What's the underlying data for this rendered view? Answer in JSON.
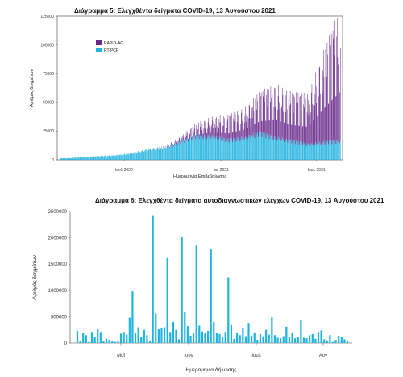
{
  "chart_data": [
    {
      "type": "bar",
      "stacked": true,
      "title": "Διάγραμμα 5: Ελεγχθέντα δείγματα COVID-19, 13 Αυγούστου 2021",
      "xlabel": "Ημερομηνία Επιβεβαίωσης",
      "ylabel": "Αριθμός δειγμάτων",
      "ylim": [
        0,
        125000
      ],
      "yticks": [
        "0",
        "25000",
        "50000",
        "75000",
        "100000",
        "125000"
      ],
      "xticks": [
        "Ιουλ 2020",
        "Ιαν 2021",
        "Ιουλ 2021"
      ],
      "legend_position": "top-left",
      "series": [
        {
          "name": "RAPID-AG",
          "color": "#6a2a8c"
        },
        {
          "name": "RT-PCR",
          "color": "#1fb3e0"
        }
      ],
      "periods": [
        {
          "x": "2020-03",
          "rtpcr": 1500,
          "rapid": 0
        },
        {
          "x": "2020-04",
          "rtpcr": 2500,
          "rapid": 0
        },
        {
          "x": "2020-05",
          "rtpcr": 3500,
          "rapid": 0
        },
        {
          "x": "2020-06",
          "rtpcr": 4000,
          "rapid": 0
        },
        {
          "x": "2020-07",
          "rtpcr": 6000,
          "rapid": 0
        },
        {
          "x": "2020-08",
          "rtpcr": 9500,
          "rapid": 0
        },
        {
          "x": "2020-09",
          "rtpcr": 11000,
          "rapid": 500
        },
        {
          "x": "2020-10",
          "rtpcr": 16000,
          "rapid": 3000
        },
        {
          "x": "2020-11",
          "rtpcr": 22000,
          "rapid": 8000
        },
        {
          "x": "2020-12",
          "rtpcr": 21000,
          "rapid": 14000
        },
        {
          "x": "2021-01",
          "rtpcr": 18000,
          "rapid": 18000
        },
        {
          "x": "2021-02",
          "rtpcr": 20000,
          "rapid": 22000
        },
        {
          "x": "2021-03",
          "rtpcr": 24000,
          "rapid": 30000
        },
        {
          "x": "2021-04",
          "rtpcr": 20000,
          "rapid": 40000
        },
        {
          "x": "2021-05",
          "rtpcr": 17000,
          "rapid": 36000
        },
        {
          "x": "2021-06",
          "rtpcr": 14000,
          "rapid": 38000
        },
        {
          "x": "2021-07",
          "rtpcr": 16000,
          "rapid": 70000
        },
        {
          "x": "2021-08",
          "rtpcr": 17000,
          "rapid": 100000
        }
      ]
    },
    {
      "type": "bar",
      "title": "Διάγραμμα 6: Ελεγχθέντα δείγματα αυτοδιαγνωστικών ελέγχων COVID-19, 13 Αυγούστου 2021",
      "xlabel": "Ημερομηνία Δήλωσης",
      "ylabel": "Αριθμός δειγμάτων",
      "ylim": [
        0,
        2500000
      ],
      "yticks": [
        "0",
        "500000",
        "1000000",
        "1500000",
        "2000000",
        "2500000"
      ],
      "xticks": [
        "Μαΐ",
        "Ιουν",
        "Ιουλ",
        "Αυγ"
      ],
      "color": "#1fb3e0",
      "values": [
        230000,
        40000,
        190000,
        150000,
        20000,
        210000,
        120000,
        260000,
        210000,
        40000,
        80000,
        60000,
        40000,
        20000,
        40000,
        180000,
        210000,
        160000,
        480000,
        980000,
        190000,
        300000,
        120000,
        250000,
        150000,
        40000,
        2430000,
        560000,
        260000,
        290000,
        300000,
        1630000,
        210000,
        400000,
        250000,
        70000,
        2020000,
        600000,
        320000,
        140000,
        200000,
        1850000,
        330000,
        220000,
        200000,
        230000,
        1780000,
        400000,
        200000,
        170000,
        110000,
        210000,
        1250000,
        350000,
        80000,
        200000,
        150000,
        290000,
        130000,
        380000,
        140000,
        200000,
        60000,
        170000,
        130000,
        250000,
        160000,
        490000,
        150000,
        100000,
        90000,
        130000,
        310000,
        120000,
        190000,
        90000,
        120000,
        440000,
        100000,
        90000,
        150000,
        170000,
        80000,
        210000,
        240000,
        70000,
        50000,
        150000,
        20000,
        60000,
        140000,
        110000,
        70000,
        40000
      ]
    }
  ]
}
